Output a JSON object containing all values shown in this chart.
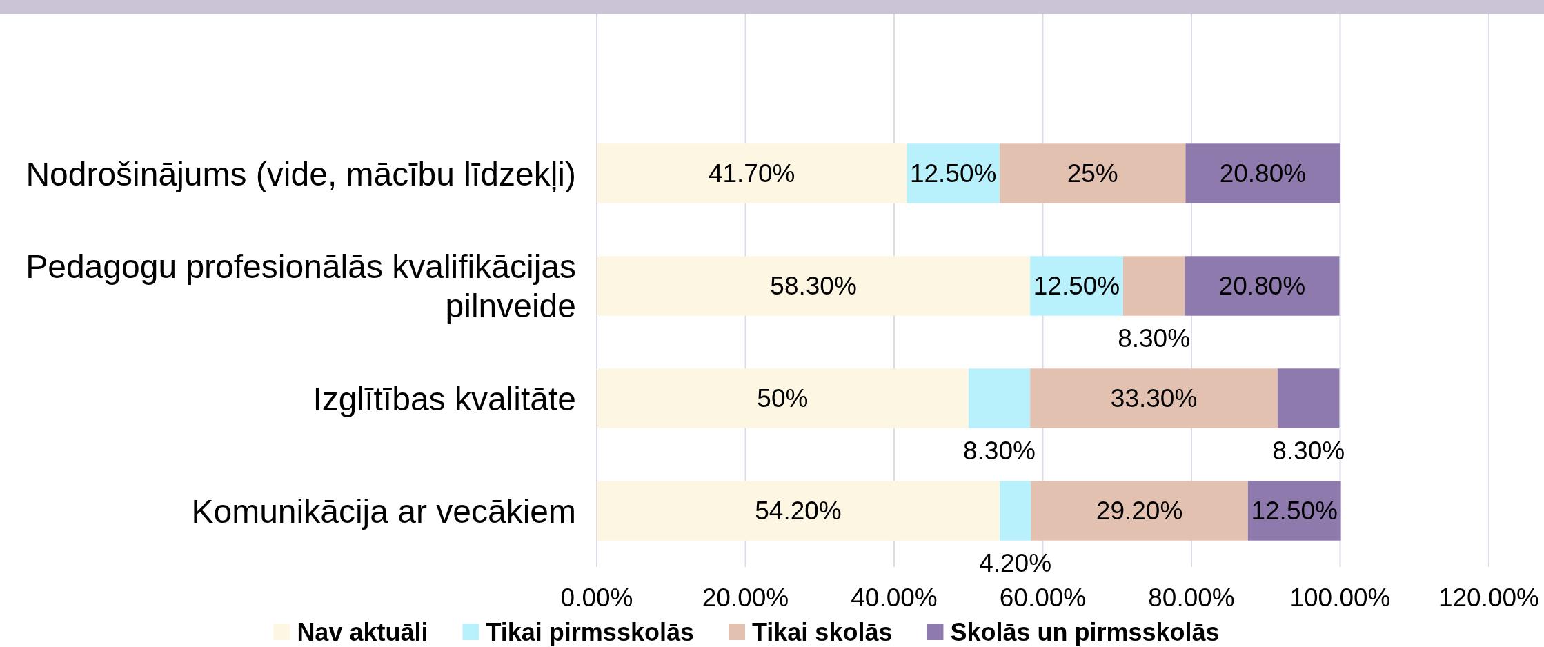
{
  "chart_data": {
    "type": "bar",
    "orientation": "horizontal",
    "stacked": true,
    "categories": [
      "Nodrošinājums (vide, mācību līdzekļi)",
      "Pedagogu profesionālās kvalifikācijas pilnveide",
      "Izglītības kvalitāte",
      "Komunikācija ar vecākiem"
    ],
    "series": [
      {
        "name": "Nav aktuāli",
        "color": "#fdf6e3",
        "values": [
          41.7,
          58.3,
          50,
          54.2
        ],
        "value_labels": [
          "41.70%",
          "58.30%",
          "50%",
          "54.20%"
        ]
      },
      {
        "name": "Tikai pirmsskolās",
        "color": "#b8f0fb",
        "values": [
          12.5,
          12.5,
          8.3,
          4.2
        ],
        "value_labels": [
          "12.50%",
          "12.50%",
          "8.30%",
          "4.20%"
        ]
      },
      {
        "name": "Tikai skolās",
        "color": "#e2c1b1",
        "values": [
          25,
          8.3,
          33.3,
          29.2
        ],
        "value_labels": [
          "25%",
          "8.30%",
          "33.30%",
          "29.20%"
        ]
      },
      {
        "name": "Skolās un pirmsskolās",
        "color": "#8f7aae",
        "values": [
          20.8,
          20.8,
          8.3,
          12.5
        ],
        "value_labels": [
          "20.80%",
          "20.80%",
          "8.30%",
          "12.50%"
        ]
      }
    ],
    "xlim": [
      0,
      120
    ],
    "xticks": [
      {
        "value": 0,
        "label": "0.00%"
      },
      {
        "value": 20,
        "label": "20.00%"
      },
      {
        "value": 40,
        "label": "40.00%"
      },
      {
        "value": 60,
        "label": "60.00%"
      },
      {
        "value": 80,
        "label": "80.00%"
      },
      {
        "value": 100,
        "label": "100.00%"
      },
      {
        "value": 120,
        "label": "120.00%"
      }
    ],
    "grid": "x",
    "legend": "bottom"
  }
}
